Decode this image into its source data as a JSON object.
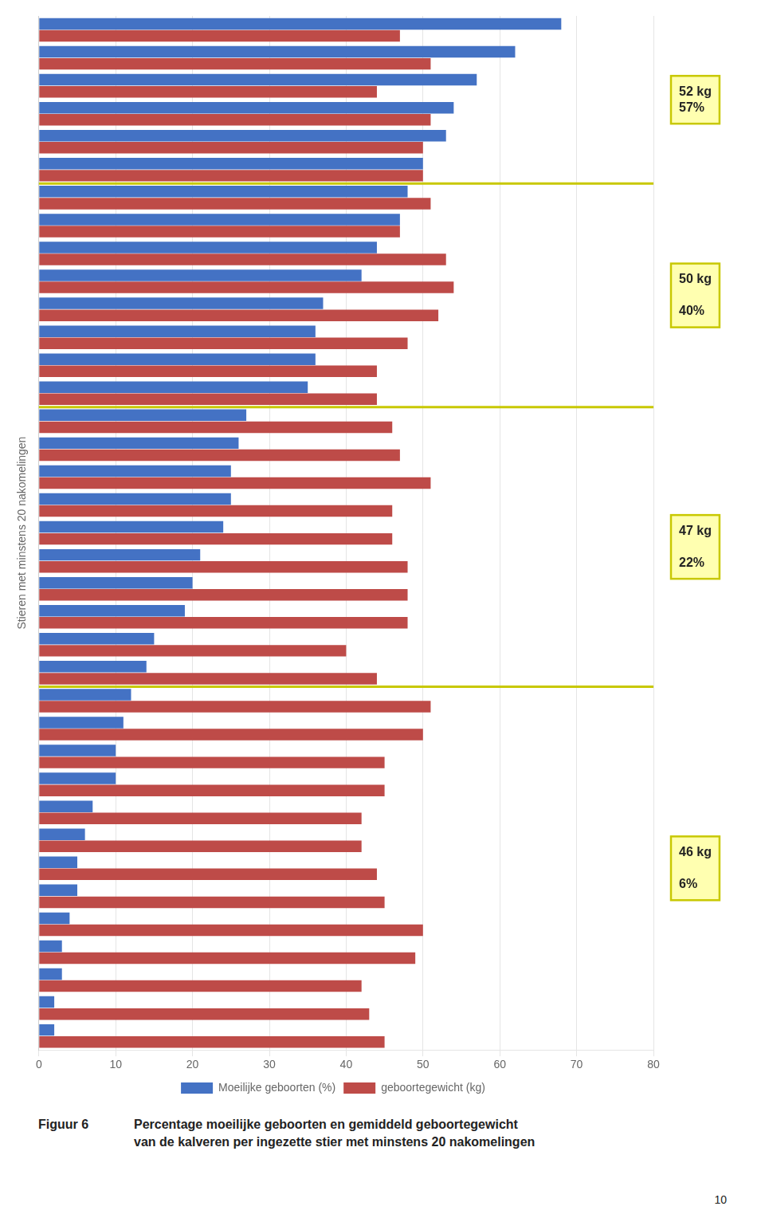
{
  "chart_data": {
    "type": "bar",
    "orientation": "horizontal",
    "y_label": "Stieren met minstens 20 nakomelingen",
    "categories": [
      null,
      null,
      null,
      null,
      null,
      null,
      null,
      null,
      null,
      null,
      null,
      null,
      null,
      null,
      null,
      null,
      null,
      null,
      null,
      null,
      null,
      null,
      null,
      null,
      null,
      null,
      null,
      null,
      null,
      null,
      null,
      null,
      null,
      null,
      null,
      null,
      null
    ],
    "series": [
      {
        "name": "Moeilijke geboorten (%)",
        "color": "#4472C4",
        "values": [
          68,
          62,
          57,
          54,
          53,
          50,
          48,
          47,
          44,
          42,
          37,
          36,
          36,
          35,
          27,
          26,
          25,
          25,
          24,
          21,
          20,
          19,
          15,
          14,
          12,
          11,
          10,
          10,
          7,
          6,
          5,
          5,
          4,
          3,
          3,
          2,
          2
        ]
      },
      {
        "name": "geboortegewicht (kg)",
        "color": "#BE4B48",
        "values": [
          47,
          51,
          44,
          51,
          50,
          50,
          51,
          47,
          53,
          54,
          52,
          48,
          44,
          44,
          46,
          47,
          51,
          46,
          46,
          48,
          48,
          48,
          40,
          44,
          51,
          50,
          45,
          45,
          42,
          42,
          44,
          45,
          50,
          49,
          42,
          43,
          45
        ]
      }
    ],
    "xlim": [
      0,
      80
    ],
    "xticks": [
      0,
      10,
      20,
      30,
      40,
      50,
      60,
      70,
      80
    ],
    "grid": true,
    "tick_labels": "x",
    "legend": "bottom",
    "annotations": [
      {
        "text": "52 kg\n57%",
        "count": 6,
        "color": "#C8C800"
      },
      {
        "text": "50 kg\n\n40%",
        "count": 8,
        "color": "#C8C800"
      },
      {
        "text": "47 kg\n\n22%",
        "count": 10,
        "color": "#C8C800"
      },
      {
        "text": "46 kg\n\n6%",
        "count": 13,
        "color": "#C8C800"
      }
    ],
    "caption_label": "Figuur 6",
    "caption": [
      "Percentage moeilijke geboorten en gemiddeld geboortegewicht",
      "van de kalveren per ingezette stier met minstens 20 nakomelingen"
    ],
    "page_number": "10"
  }
}
